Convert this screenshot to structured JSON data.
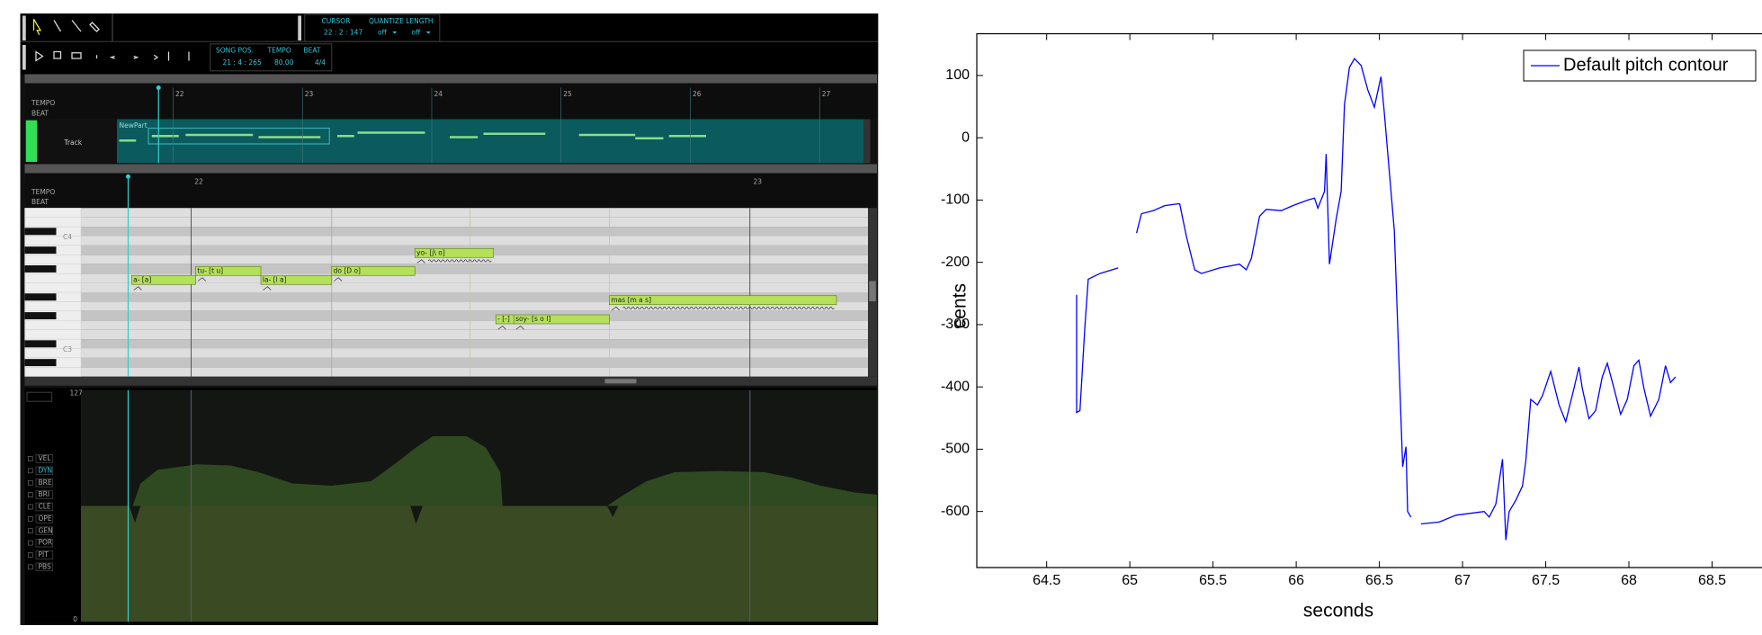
{
  "editor": {
    "toolbar": {
      "cursor_label": "CURSOR",
      "quantize_label": "QUANTIZE",
      "length_label": "LENGTH",
      "cursor": "22 : 2 : 147",
      "quantize": "off",
      "length": "off",
      "song_pos_label": "SONG POS.",
      "tempo_label": "TEMPO",
      "beat_label": "BEAT",
      "song_pos": "21 : 4 : 265",
      "tempo": "80.00",
      "beat": "4/4"
    },
    "track_editor": {
      "rows": [
        "TEMPO",
        "BEAT"
      ],
      "bars": [
        "22",
        "23",
        "24",
        "25",
        "26",
        "27"
      ],
      "track_name": "Track",
      "part_name": "NewPart"
    },
    "musical_editor": {
      "rows": [
        "TEMPO",
        "BEAT"
      ],
      "bars": [
        "22",
        "23"
      ],
      "keys": [
        "C4",
        "C3"
      ],
      "notes": [
        "a- [a]",
        "tu- [t u]",
        "la- [l a]",
        "do [D o]",
        "yo- [j\\ o]",
        "- [-]",
        "soy- [s o I]",
        "mas [m a s]"
      ]
    },
    "control": {
      "max": "127",
      "min": "0",
      "params": [
        "VEL",
        "DYN",
        "BRE",
        "BRI",
        "CLE",
        "OPE",
        "GEN",
        "POR",
        "PIT",
        "PBS"
      ]
    }
  },
  "chart_data": {
    "type": "line",
    "xlabel": "seconds",
    "ylabel": "cents",
    "xlim": [
      64.08,
      68.8
    ],
    "ylim": [
      -690,
      167
    ],
    "xticks": [
      64.5,
      65,
      65.5,
      66,
      66.5,
      67,
      67.5,
      68,
      68.5
    ],
    "yticks": [
      -600,
      -500,
      -400,
      -300,
      -200,
      -100,
      0,
      100
    ],
    "legend": "upper right",
    "series": [
      {
        "name": "Default pitch contour",
        "color": "#0000ff",
        "x": [
          64.68,
          64.68,
          64.7,
          64.73,
          64.75,
          64.82,
          64.93,
          null,
          65.04,
          65.07,
          65.14,
          65.21,
          65.29,
          65.3,
          65.34,
          65.39,
          65.43,
          65.54,
          65.66,
          65.7,
          65.73,
          65.78,
          65.82,
          65.91,
          65.98,
          66.07,
          66.11,
          66.13,
          66.17,
          66.18,
          66.2,
          66.24,
          66.27,
          66.29,
          66.32,
          66.35,
          66.39,
          66.43,
          66.47,
          66.51,
          66.53,
          66.59,
          66.64,
          66.66,
          66.67,
          66.69,
          null,
          66.75,
          66.86,
          66.96,
          67.13,
          67.16,
          67.2,
          67.24,
          67.26,
          67.28,
          67.32,
          67.36,
          67.38,
          67.41,
          67.45,
          67.48,
          67.53,
          67.58,
          67.62,
          67.67,
          67.7,
          67.72,
          67.76,
          67.8,
          67.84,
          67.87,
          67.91,
          67.95,
          67.99,
          68.03,
          68.06,
          68.09,
          68.13,
          68.18,
          68.22,
          68.25,
          68.28
        ],
        "values": [
          -252,
          -441,
          -438,
          -303,
          -227,
          -218,
          -209,
          null,
          -153,
          -122,
          -117,
          -109,
          -106,
          -106,
          -158,
          -212,
          -218,
          -209,
          -203,
          -212,
          -194,
          -126,
          -115,
          -117,
          -109,
          -100,
          -97,
          -113,
          -86,
          -26,
          -203,
          -131,
          -86,
          53,
          113,
          127,
          116,
          77,
          49,
          98,
          40,
          -149,
          -528,
          -496,
          -600,
          -609,
          null,
          -620,
          -617,
          -606,
          -600,
          -609,
          -588,
          -516,
          -646,
          -600,
          -582,
          -559,
          -519,
          -420,
          -429,
          -414,
          -375,
          -429,
          -456,
          -402,
          -368,
          -402,
          -451,
          -438,
          -384,
          -362,
          -402,
          -444,
          -420,
          -366,
          -357,
          -402,
          -447,
          -420,
          -366,
          -393,
          -384
        ]
      }
    ]
  }
}
